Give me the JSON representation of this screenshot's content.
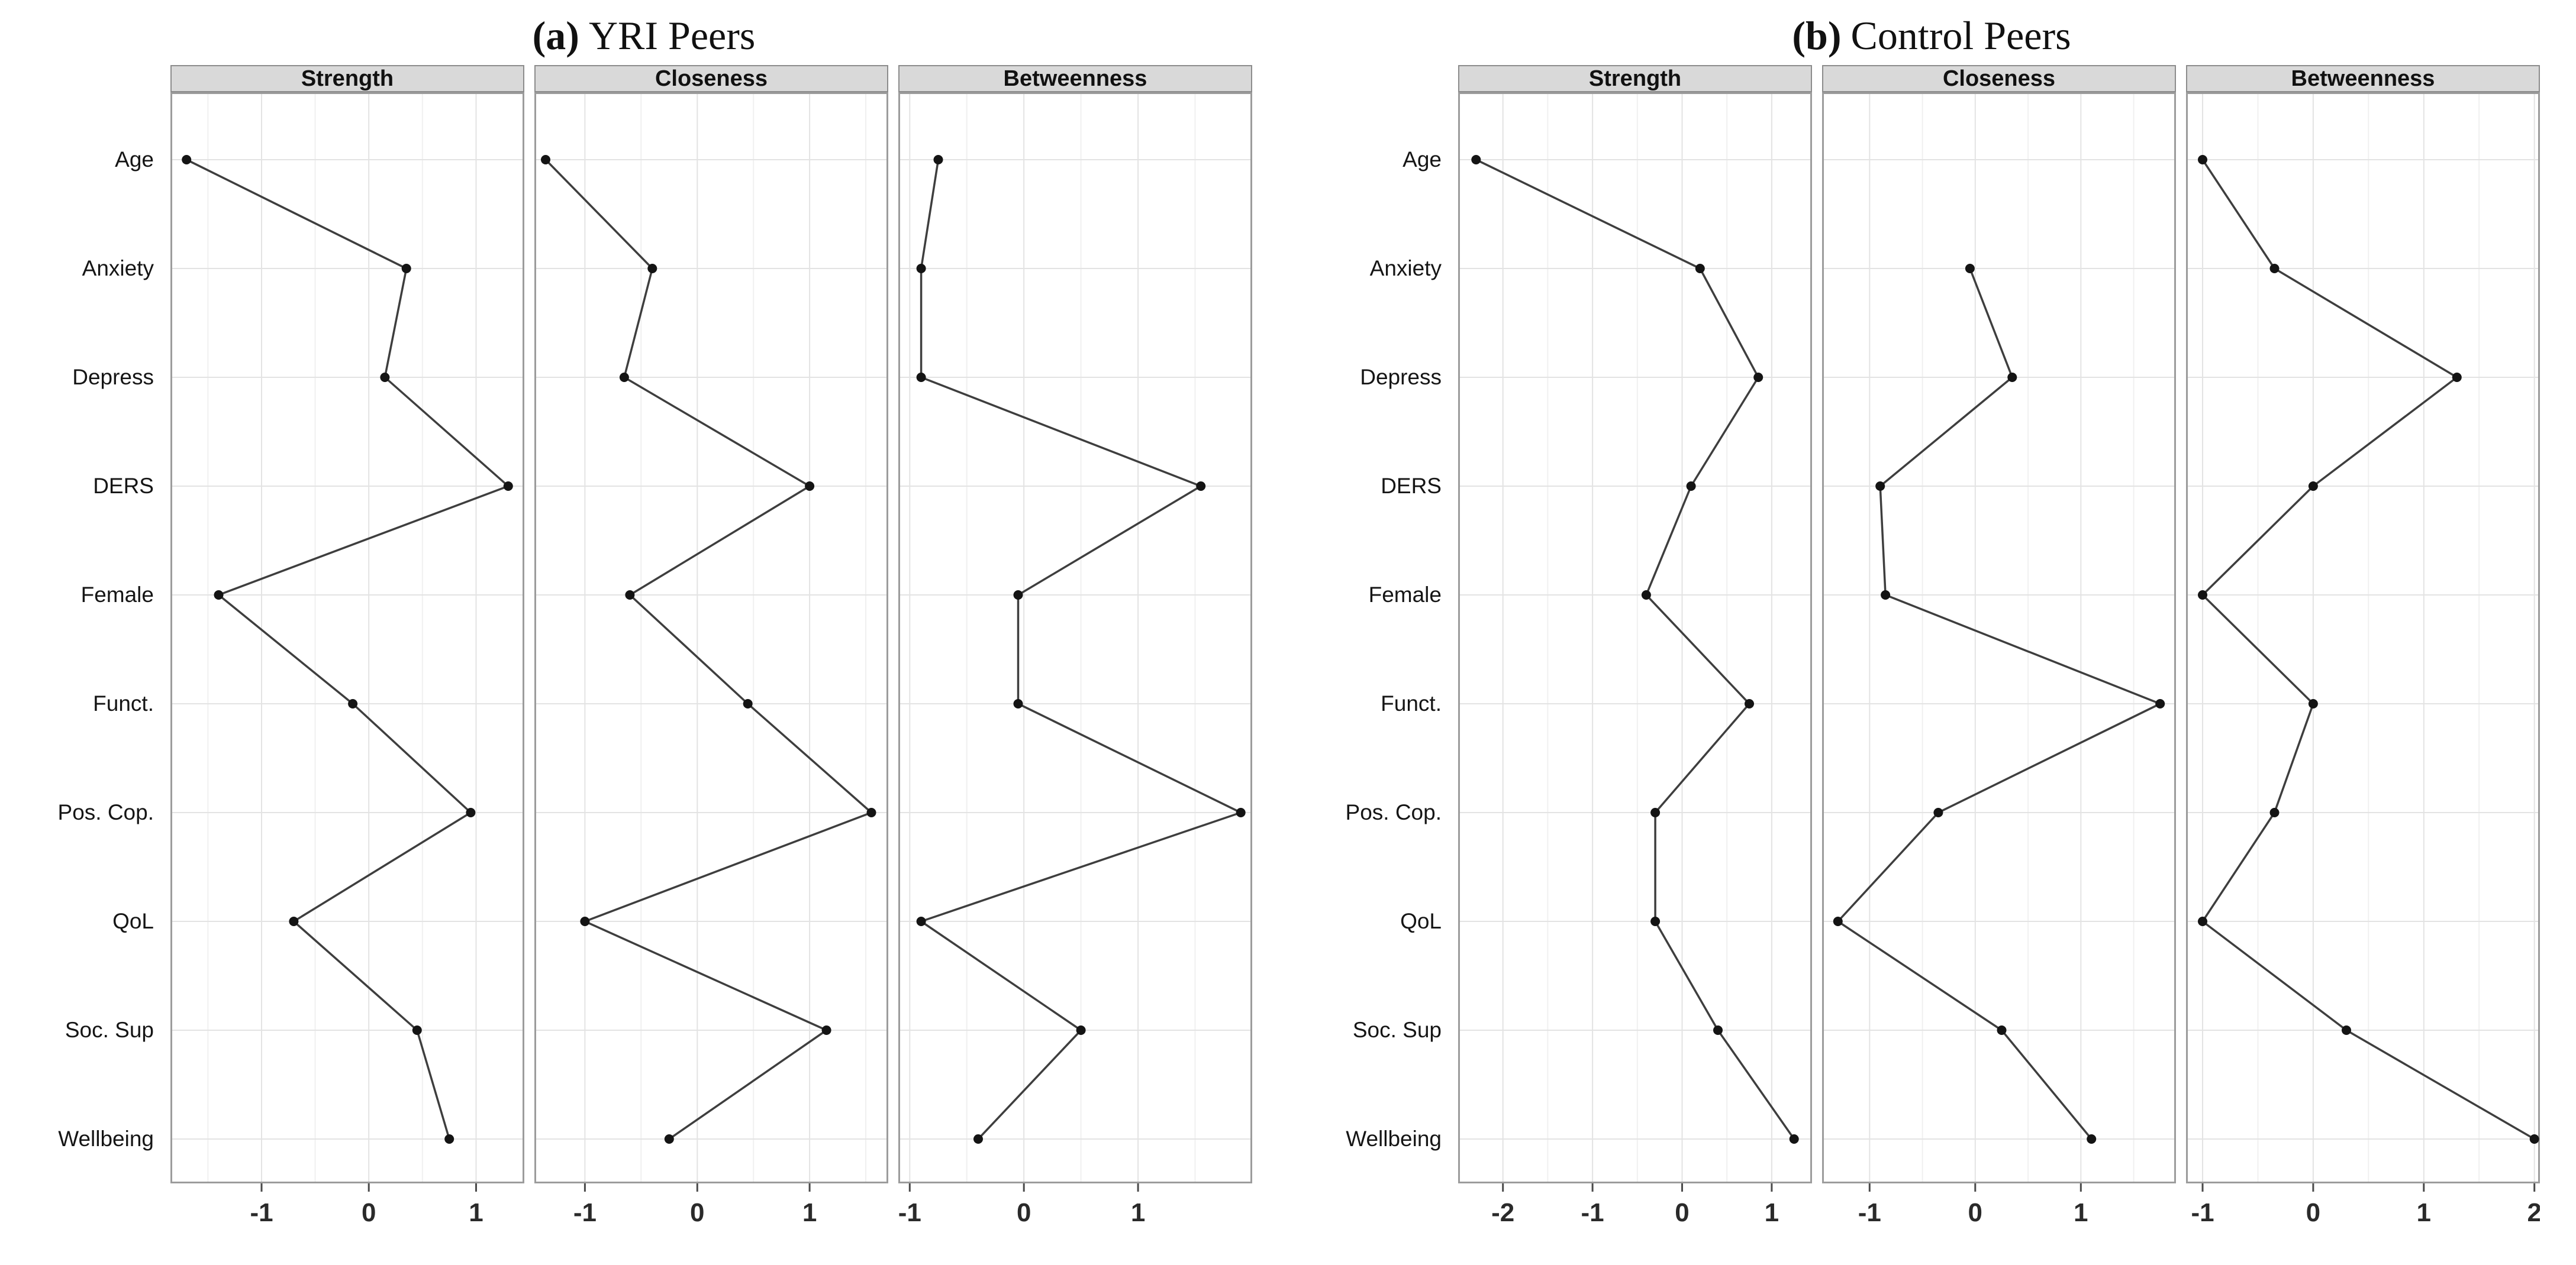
{
  "figure_type": "faceted centrality line plots (two panels, three facets each)",
  "legend": "none",
  "grid": {
    "shown": true,
    "minor_step": 0.5
  },
  "colors": {
    "background": "#ffffff",
    "header_fill": "#d9d9d9",
    "header_border": "#8c8c8c",
    "panel_border": "#9c9c9c",
    "grid_major": "#e3e3e3",
    "grid_minor": "#f0f0f0",
    "tick_mark": "#4a4a4a",
    "line": "#3e3e3e",
    "point": "#141414",
    "text": "#1a1a1a"
  },
  "chart_data": [
    {
      "type": "line",
      "panel": "a",
      "title_label": "(a)",
      "title_text": "YRI Peers",
      "xlabel": "",
      "ylabel": "",
      "categories": [
        "Age",
        "Anxiety",
        "Depress",
        "DERS",
        "Female",
        "Funct.",
        "Pos. Cop.",
        "QoL",
        "Soc. Sup",
        "Wellbeing"
      ],
      "facets": [
        {
          "label": "Strength",
          "xlim": [
            -1.85,
            1.45
          ],
          "ticks": [
            -1,
            0,
            1
          ],
          "values": [
            -1.7,
            0.35,
            0.15,
            1.3,
            -1.4,
            -0.15,
            0.95,
            -0.7,
            0.45,
            0.75
          ]
        },
        {
          "label": "Closeness",
          "xlim": [
            -1.45,
            1.7
          ],
          "ticks": [
            -1,
            0,
            1
          ],
          "values": [
            -1.35,
            -0.4,
            -0.65,
            1.0,
            -0.6,
            0.45,
            1.55,
            -1.0,
            1.15,
            -0.25
          ]
        },
        {
          "label": "Betweenness",
          "xlim": [
            -1.1,
            2.0
          ],
          "ticks": [
            -1,
            0,
            1
          ],
          "values": [
            -0.75,
            -0.9,
            -0.9,
            1.55,
            -0.05,
            -0.05,
            1.9,
            -0.9,
            0.5,
            -0.4
          ]
        }
      ]
    },
    {
      "type": "line",
      "panel": "b",
      "title_label": "(b)",
      "title_text": "Control Peers",
      "xlabel": "",
      "ylabel": "",
      "categories": [
        "Age",
        "Anxiety",
        "Depress",
        "DERS",
        "Female",
        "Funct.",
        "Pos. Cop.",
        "QoL",
        "Soc. Sup",
        "Wellbeing"
      ],
      "facets": [
        {
          "label": "Strength",
          "xlim": [
            -2.5,
            1.45
          ],
          "ticks": [
            -2,
            -1,
            0,
            1
          ],
          "values": [
            -2.3,
            0.2,
            0.85,
            0.1,
            -0.4,
            0.75,
            -0.3,
            -0.3,
            0.4,
            1.25
          ]
        },
        {
          "label": "Closeness",
          "xlim": [
            -1.45,
            1.9
          ],
          "ticks": [
            -1,
            0,
            1
          ],
          "values": [
            null,
            -0.05,
            0.35,
            -0.9,
            -0.85,
            1.75,
            -0.35,
            -1.3,
            0.25,
            1.1
          ]
        },
        {
          "label": "Betweenness",
          "xlim": [
            -1.15,
            2.05
          ],
          "ticks": [
            -1,
            0,
            1,
            2
          ],
          "values": [
            -1.0,
            -0.35,
            1.3,
            0.0,
            -1.0,
            0.0,
            -0.35,
            -1.0,
            0.3,
            2.0
          ]
        }
      ]
    }
  ]
}
